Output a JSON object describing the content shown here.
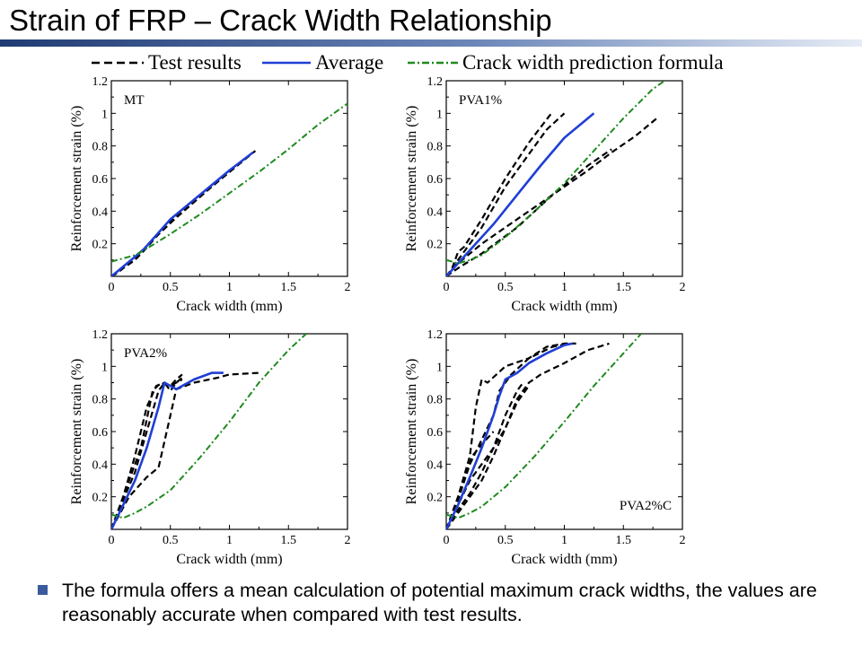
{
  "slide": {
    "title": "Strain of FRP – Crack Width Relationship",
    "bullet": "The formula offers a mean calculation of potential maximum crack widths, the values are reasonably accurate when compared with test results."
  },
  "colors": {
    "test": "#000000",
    "average": "#1f3fd6",
    "formula": "#1f8a1f",
    "title_rule": "#1f3b73",
    "bullet": "#3a5a9c"
  },
  "legend": [
    {
      "series": "test",
      "label": "Test results",
      "style": "dashed"
    },
    {
      "series": "average",
      "label": "Average",
      "style": "solid"
    },
    {
      "series": "formula",
      "label": "Crack width prediction formula",
      "style": "dashdot"
    }
  ],
  "chart_data": [
    {
      "type": "line",
      "panel_label": "MT",
      "label_position": "top-left",
      "xlabel": "Crack width (mm)",
      "ylabel": "Reinforcement strain (%)",
      "xlim": [
        0,
        2
      ],
      "ylim": [
        0,
        1.2
      ],
      "xticks": [
        "0",
        "0.5",
        "1",
        "1.5",
        "2"
      ],
      "yticks": [
        "0.2",
        "0.4",
        "0.6",
        "0.8",
        "1",
        "1.2"
      ],
      "grid": false,
      "series": [
        {
          "kind": "test",
          "x": [
            0,
            0.05,
            0.1,
            0.2,
            0.28,
            0.5,
            0.8,
            1.0,
            1.2
          ],
          "y": [
            0,
            0.02,
            0.05,
            0.1,
            0.16,
            0.34,
            0.52,
            0.64,
            0.76
          ]
        },
        {
          "kind": "test",
          "x": [
            0,
            0.08,
            0.15,
            0.25,
            0.3,
            0.55,
            0.85,
            1.05,
            1.22
          ],
          "y": [
            0,
            0.04,
            0.08,
            0.14,
            0.19,
            0.36,
            0.55,
            0.67,
            0.77
          ]
        },
        {
          "kind": "average",
          "x": [
            0,
            0.05,
            0.1,
            0.2,
            0.28,
            0.5,
            0.8,
            1.0,
            1.2
          ],
          "y": [
            0,
            0.03,
            0.06,
            0.12,
            0.17,
            0.35,
            0.53,
            0.65,
            0.76
          ]
        },
        {
          "kind": "formula",
          "x": [
            0,
            0.1,
            0.2,
            0.3,
            0.5,
            0.75,
            1.0,
            1.25,
            1.5,
            1.75,
            2.0
          ],
          "y": [
            0.09,
            0.11,
            0.13,
            0.17,
            0.26,
            0.38,
            0.51,
            0.64,
            0.78,
            0.93,
            1.06
          ]
        }
      ]
    },
    {
      "type": "line",
      "panel_label": "PVA1%",
      "label_position": "top-left",
      "xlabel": "Crack width (mm)",
      "ylabel": "Reinforcement strain (%)",
      "xlim": [
        0,
        2
      ],
      "ylim": [
        0,
        1.2
      ],
      "xticks": [
        "0",
        "0.5",
        "1",
        "1.5",
        "2"
      ],
      "yticks": [
        "0.2",
        "0.4",
        "0.6",
        "0.8",
        "1",
        "1.2"
      ],
      "grid": false,
      "series": [
        {
          "kind": "test",
          "x": [
            0,
            0.05,
            0.1,
            0.15,
            0.3,
            0.5,
            0.7,
            0.9
          ],
          "y": [
            0,
            0.05,
            0.15,
            0.18,
            0.35,
            0.6,
            0.82,
            1.01
          ]
        },
        {
          "kind": "test",
          "x": [
            0,
            0.05,
            0.1,
            0.3,
            0.5,
            0.7,
            0.85,
            1.0
          ],
          "y": [
            0,
            0.03,
            0.1,
            0.3,
            0.55,
            0.75,
            0.9,
            1.0
          ]
        },
        {
          "kind": "test",
          "x": [
            0,
            0.1,
            0.3,
            0.6,
            0.9,
            1.2,
            1.4,
            1.6,
            1.8
          ],
          "y": [
            0,
            0.08,
            0.2,
            0.35,
            0.5,
            0.65,
            0.76,
            0.86,
            0.98
          ]
        },
        {
          "kind": "test",
          "x": [
            0,
            0.1,
            0.3,
            0.6,
            0.9,
            1.2,
            1.4
          ],
          "y": [
            0,
            0.05,
            0.14,
            0.3,
            0.5,
            0.68,
            0.78
          ]
        },
        {
          "kind": "average",
          "x": [
            0,
            0.05,
            0.2,
            0.4,
            0.6,
            0.8,
            1.0,
            1.15,
            1.25
          ],
          "y": [
            0,
            0.04,
            0.16,
            0.32,
            0.5,
            0.68,
            0.85,
            0.94,
            1.0
          ]
        },
        {
          "kind": "formula",
          "x": [
            0,
            0.1,
            0.2,
            0.3,
            0.5,
            0.75,
            1.0,
            1.25,
            1.5,
            1.75,
            1.85
          ],
          "y": [
            0.1,
            0.08,
            0.1,
            0.13,
            0.24,
            0.4,
            0.57,
            0.77,
            0.97,
            1.15,
            1.2
          ]
        }
      ]
    },
    {
      "type": "line",
      "panel_label": "PVA2%",
      "label_position": "top-left",
      "xlabel": "Crack width (mm)",
      "ylabel": "Reinforcement strain (%)",
      "xlim": [
        0,
        2
      ],
      "ylim": [
        0,
        1.2
      ],
      "xticks": [
        "0",
        "0.5",
        "1",
        "1.5",
        "2"
      ],
      "yticks": [
        "0.2",
        "0.4",
        "0.6",
        "0.8",
        "1",
        "1.2"
      ],
      "grid": false,
      "series": [
        {
          "kind": "test",
          "x": [
            0,
            0.1,
            0.2,
            0.3,
            0.38,
            0.45,
            0.5,
            0.55,
            0.6
          ],
          "y": [
            0,
            0.2,
            0.45,
            0.75,
            0.88,
            0.9,
            0.88,
            0.92,
            0.95
          ]
        },
        {
          "kind": "test",
          "x": [
            0,
            0.1,
            0.2,
            0.3,
            0.4,
            0.45,
            0.5,
            0.55,
            0.6
          ],
          "y": [
            0,
            0.18,
            0.35,
            0.6,
            0.85,
            0.9,
            0.85,
            0.9,
            0.93
          ]
        },
        {
          "kind": "test",
          "x": [
            0,
            0.15,
            0.3,
            0.4,
            0.5,
            0.55,
            0.7,
            0.9,
            1.0,
            1.25
          ],
          "y": [
            0,
            0.2,
            0.32,
            0.38,
            0.7,
            0.86,
            0.9,
            0.93,
            0.95,
            0.96
          ]
        },
        {
          "kind": "test",
          "x": [
            0,
            0.1,
            0.25,
            0.35,
            0.42,
            0.5,
            0.6
          ],
          "y": [
            0,
            0.2,
            0.5,
            0.85,
            0.9,
            0.88,
            0.92
          ]
        },
        {
          "kind": "average",
          "x": [
            0,
            0.1,
            0.2,
            0.3,
            0.4,
            0.45,
            0.5,
            0.55,
            0.7,
            0.85,
            0.95
          ],
          "y": [
            0,
            0.15,
            0.3,
            0.5,
            0.75,
            0.9,
            0.88,
            0.86,
            0.92,
            0.96,
            0.96
          ]
        },
        {
          "kind": "formula",
          "x": [
            0,
            0.1,
            0.2,
            0.3,
            0.5,
            0.75,
            1.0,
            1.25,
            1.5,
            1.65
          ],
          "y": [
            0.09,
            0.07,
            0.1,
            0.14,
            0.24,
            0.44,
            0.66,
            0.9,
            1.1,
            1.2
          ]
        }
      ]
    },
    {
      "type": "line",
      "panel_label": "PVA2%C",
      "label_position": "bottom-right",
      "xlabel": "Crack width (mm)",
      "ylabel": "Reinforcement strain (%)",
      "xlim": [
        0,
        2
      ],
      "ylim": [
        0,
        1.2
      ],
      "xticks": [
        "0",
        "0.5",
        "1",
        "1.5",
        "2"
      ],
      "yticks": [
        "0.2",
        "0.4",
        "0.6",
        "0.8",
        "1",
        "1.2"
      ],
      "grid": false,
      "series": [
        {
          "kind": "test",
          "x": [
            0,
            0.1,
            0.2,
            0.25,
            0.3,
            0.35,
            0.5,
            0.7,
            0.85,
            1.0,
            1.1
          ],
          "y": [
            0,
            0.2,
            0.45,
            0.75,
            0.92,
            0.9,
            1.0,
            1.05,
            1.12,
            1.14,
            1.14
          ]
        },
        {
          "kind": "test",
          "x": [
            0,
            0.1,
            0.2,
            0.3,
            0.4,
            0.5,
            0.6,
            0.7,
            0.8,
            1.0,
            1.2,
            1.38
          ],
          "y": [
            0,
            0.15,
            0.3,
            0.4,
            0.5,
            0.62,
            0.8,
            0.9,
            0.95,
            1.02,
            1.1,
            1.14
          ]
        },
        {
          "kind": "test",
          "x": [
            0,
            0.1,
            0.2,
            0.3,
            0.4,
            0.5,
            0.6,
            0.65
          ],
          "y": [
            0,
            0.12,
            0.22,
            0.35,
            0.5,
            0.7,
            0.85,
            0.9
          ]
        },
        {
          "kind": "test",
          "x": [
            0,
            0.1,
            0.2,
            0.3,
            0.4,
            0.45,
            0.55,
            0.7,
            0.9,
            1.05
          ],
          "y": [
            0,
            0.18,
            0.4,
            0.55,
            0.7,
            0.85,
            0.95,
            1.05,
            1.12,
            1.14
          ]
        },
        {
          "kind": "test",
          "x": [
            0,
            0.1,
            0.2,
            0.3,
            0.4,
            0.5,
            0.6,
            0.7
          ],
          "y": [
            0,
            0.1,
            0.2,
            0.3,
            0.45,
            0.62,
            0.78,
            0.88
          ]
        },
        {
          "kind": "test",
          "x": [
            0,
            0.08,
            0.15,
            0.22,
            0.3,
            0.4
          ],
          "y": [
            0,
            0.15,
            0.3,
            0.45,
            0.52,
            0.6
          ]
        },
        {
          "kind": "average",
          "x": [
            0,
            0.1,
            0.2,
            0.3,
            0.4,
            0.45,
            0.5,
            0.6,
            0.7,
            0.85,
            1.0,
            1.07
          ],
          "y": [
            0,
            0.15,
            0.32,
            0.5,
            0.7,
            0.82,
            0.92,
            0.96,
            1.02,
            1.08,
            1.13,
            1.14
          ]
        },
        {
          "kind": "formula",
          "x": [
            0,
            0.1,
            0.2,
            0.3,
            0.5,
            0.75,
            1.0,
            1.25,
            1.5,
            1.65
          ],
          "y": [
            0.09,
            0.07,
            0.1,
            0.14,
            0.26,
            0.45,
            0.66,
            0.88,
            1.08,
            1.2
          ]
        }
      ]
    }
  ]
}
